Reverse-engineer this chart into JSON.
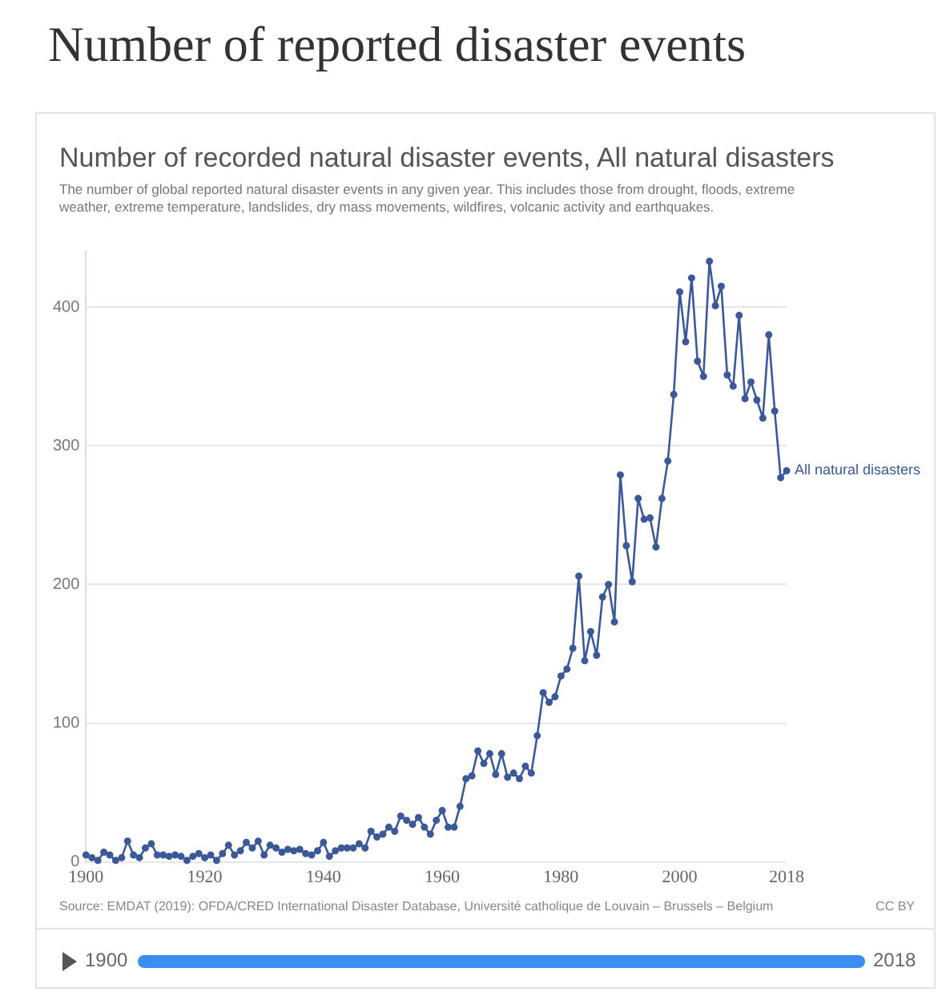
{
  "chart_data": {
    "type": "line",
    "title": "Number of reported disaster events",
    "subtitle": "Number of recorded natural disaster events, All natural disasters",
    "annotations": [
      "The number of global reported natural disaster events in any given year. This includes those from drought, floods, extreme weather, extreme temperature, landslides, dry mass movements, wildfires, volcanic activity and earthquakes.",
      "Source: EMDAT (2019): OFDA/CRED International Disaster Database, Université catholique de Louvain – Brussels – Belgium",
      "CC BY",
      "1900",
      "2018"
    ],
    "x": [
      1900,
      1901,
      1902,
      1903,
      1904,
      1905,
      1906,
      1907,
      1908,
      1909,
      1910,
      1911,
      1912,
      1913,
      1914,
      1915,
      1916,
      1917,
      1918,
      1919,
      1920,
      1921,
      1922,
      1923,
      1924,
      1925,
      1926,
      1927,
      1928,
      1929,
      1930,
      1931,
      1932,
      1933,
      1934,
      1935,
      1936,
      1937,
      1938,
      1939,
      1940,
      1941,
      1942,
      1943,
      1944,
      1945,
      1946,
      1947,
      1948,
      1949,
      1950,
      1951,
      1952,
      1953,
      1954,
      1955,
      1956,
      1957,
      1958,
      1959,
      1960,
      1961,
      1962,
      1963,
      1964,
      1965,
      1966,
      1967,
      1968,
      1969,
      1970,
      1971,
      1972,
      1973,
      1974,
      1975,
      1976,
      1977,
      1978,
      1979,
      1980,
      1981,
      1982,
      1983,
      1984,
      1985,
      1986,
      1987,
      1988,
      1989,
      1990,
      1991,
      1992,
      1993,
      1994,
      1995,
      1996,
      1997,
      1998,
      1999,
      2000,
      2001,
      2002,
      2003,
      2004,
      2005,
      2006,
      2007,
      2008,
      2009,
      2010,
      2011,
      2012,
      2013,
      2014,
      2015,
      2016,
      2017,
      2018
    ],
    "series": [
      {
        "name": "All natural disasters",
        "color": "#3b5998",
        "values": [
          5,
          3,
          1,
          7,
          5,
          1,
          3,
          15,
          5,
          3,
          10,
          13,
          5,
          5,
          4,
          5,
          4,
          1,
          4,
          6,
          3,
          5,
          1,
          6,
          12,
          5,
          8,
          14,
          10,
          15,
          5,
          12,
          10,
          7,
          9,
          8,
          9,
          6,
          5,
          8,
          14,
          4,
          8,
          10,
          10,
          10,
          13,
          10,
          22,
          18,
          20,
          25,
          22,
          33,
          30,
          27,
          32,
          25,
          20,
          30,
          37,
          25,
          25,
          40,
          60,
          62,
          80,
          71,
          78,
          63,
          78,
          61,
          64,
          60,
          69,
          64,
          91,
          122,
          115,
          119,
          134,
          139,
          154,
          206,
          145,
          166,
          149,
          191,
          200,
          173,
          279,
          228,
          202,
          262,
          247,
          248,
          227,
          262,
          289,
          337,
          411,
          375,
          421,
          361,
          350,
          433,
          401,
          415,
          351,
          343,
          394,
          334,
          346,
          333,
          320,
          380,
          325,
          277,
          282
        ]
      }
    ],
    "xlim": [
      1900,
      2018
    ],
    "xticks": [
      1900,
      1920,
      1940,
      1960,
      1980,
      2000,
      2018
    ],
    "ylim": [
      0,
      440
    ],
    "yticks": [
      0,
      100,
      200,
      300,
      400
    ],
    "grid": "y",
    "marker": "circle",
    "line_style": "solid",
    "legend": false
  }
}
